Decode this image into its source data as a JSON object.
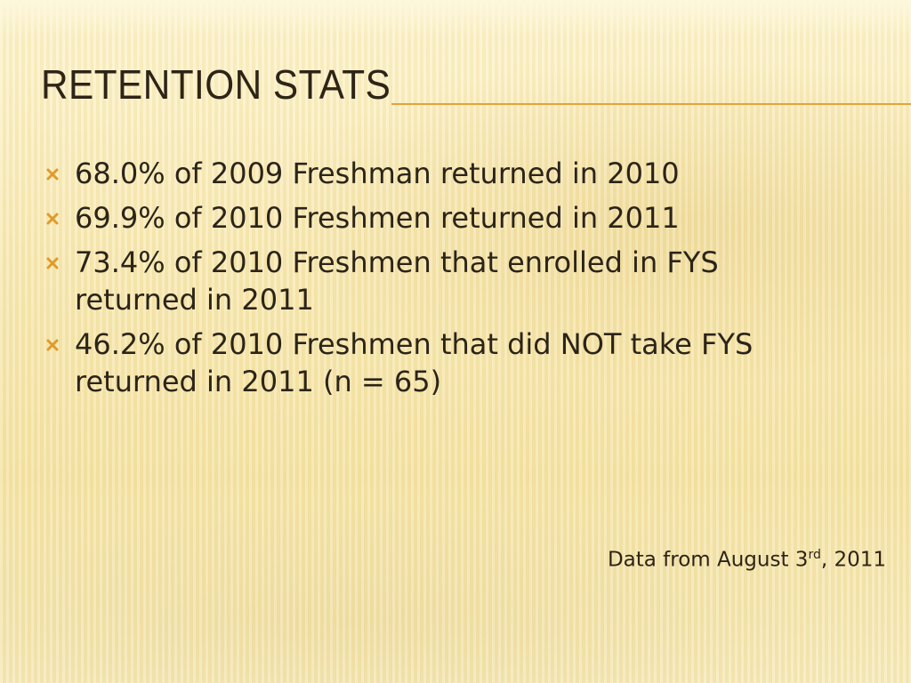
{
  "slide": {
    "title": "RETENTION STATS",
    "bullets": [
      "68.0% of 2009 Freshman returned in 2010",
      "69.9% of 2010 Freshmen returned in 2011",
      "73.4% of 2010 Freshmen that enrolled in FYS returned in 2011",
      "46.2% of 2010 Freshmen that did NOT take FYS returned in 2011 (n = 65)"
    ],
    "footnote": {
      "text": "Data from August 3",
      "superscript": "rd",
      "suffix": ", 2011"
    }
  }
}
